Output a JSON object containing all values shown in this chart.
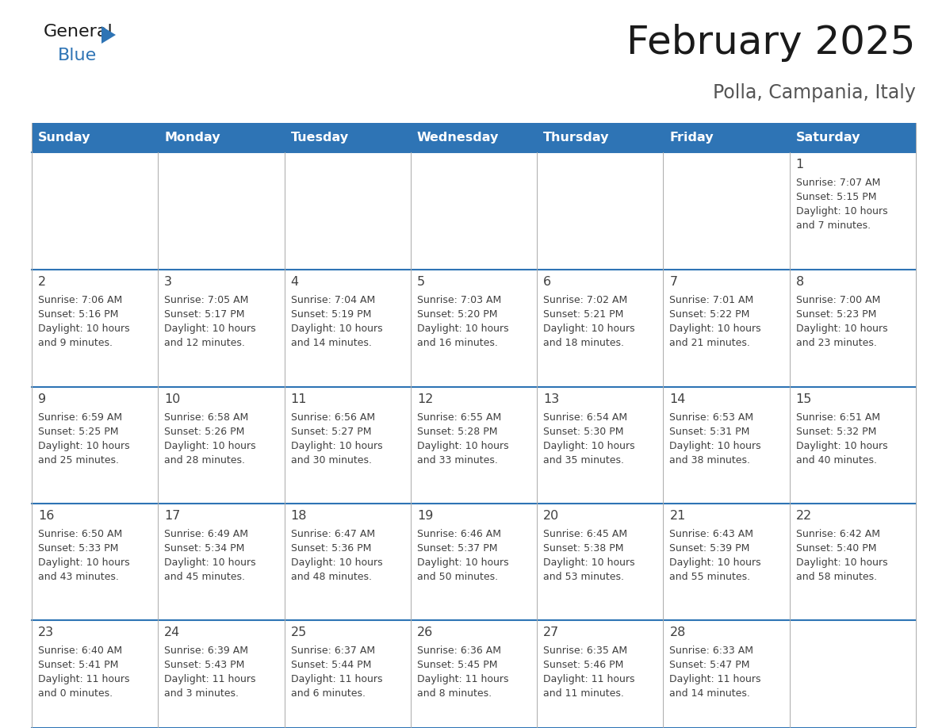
{
  "title": "February 2025",
  "subtitle": "Polla, Campania, Italy",
  "days_of_week": [
    "Sunday",
    "Monday",
    "Tuesday",
    "Wednesday",
    "Thursday",
    "Friday",
    "Saturday"
  ],
  "header_bg": "#2E74B5",
  "header_text_color": "#FFFFFF",
  "cell_bg": "#FFFFFF",
  "cell_bg_alt": "#F2F2F2",
  "divider_color": "#2E74B5",
  "divider_light": "#AAAAAA",
  "text_color": "#404040",
  "day_num_color": "#404040",
  "title_color": "#1a1a1a",
  "subtitle_color": "#555555",
  "logo_general_color": "#1a1a1a",
  "logo_blue_color": "#2E74B5",
  "logo_triangle_color": "#2E74B5",
  "calendar_data": [
    [
      null,
      null,
      null,
      null,
      null,
      null,
      {
        "day": "1",
        "sunrise": "7:07 AM",
        "sunset": "5:15 PM",
        "daylight": "10 hours\nand 7 minutes."
      }
    ],
    [
      {
        "day": "2",
        "sunrise": "7:06 AM",
        "sunset": "5:16 PM",
        "daylight": "10 hours\nand 9 minutes."
      },
      {
        "day": "3",
        "sunrise": "7:05 AM",
        "sunset": "5:17 PM",
        "daylight": "10 hours\nand 12 minutes."
      },
      {
        "day": "4",
        "sunrise": "7:04 AM",
        "sunset": "5:19 PM",
        "daylight": "10 hours\nand 14 minutes."
      },
      {
        "day": "5",
        "sunrise": "7:03 AM",
        "sunset": "5:20 PM",
        "daylight": "10 hours\nand 16 minutes."
      },
      {
        "day": "6",
        "sunrise": "7:02 AM",
        "sunset": "5:21 PM",
        "daylight": "10 hours\nand 18 minutes."
      },
      {
        "day": "7",
        "sunrise": "7:01 AM",
        "sunset": "5:22 PM",
        "daylight": "10 hours\nand 21 minutes."
      },
      {
        "day": "8",
        "sunrise": "7:00 AM",
        "sunset": "5:23 PM",
        "daylight": "10 hours\nand 23 minutes."
      }
    ],
    [
      {
        "day": "9",
        "sunrise": "6:59 AM",
        "sunset": "5:25 PM",
        "daylight": "10 hours\nand 25 minutes."
      },
      {
        "day": "10",
        "sunrise": "6:58 AM",
        "sunset": "5:26 PM",
        "daylight": "10 hours\nand 28 minutes."
      },
      {
        "day": "11",
        "sunrise": "6:56 AM",
        "sunset": "5:27 PM",
        "daylight": "10 hours\nand 30 minutes."
      },
      {
        "day": "12",
        "sunrise": "6:55 AM",
        "sunset": "5:28 PM",
        "daylight": "10 hours\nand 33 minutes."
      },
      {
        "day": "13",
        "sunrise": "6:54 AM",
        "sunset": "5:30 PM",
        "daylight": "10 hours\nand 35 minutes."
      },
      {
        "day": "14",
        "sunrise": "6:53 AM",
        "sunset": "5:31 PM",
        "daylight": "10 hours\nand 38 minutes."
      },
      {
        "day": "15",
        "sunrise": "6:51 AM",
        "sunset": "5:32 PM",
        "daylight": "10 hours\nand 40 minutes."
      }
    ],
    [
      {
        "day": "16",
        "sunrise": "6:50 AM",
        "sunset": "5:33 PM",
        "daylight": "10 hours\nand 43 minutes."
      },
      {
        "day": "17",
        "sunrise": "6:49 AM",
        "sunset": "5:34 PM",
        "daylight": "10 hours\nand 45 minutes."
      },
      {
        "day": "18",
        "sunrise": "6:47 AM",
        "sunset": "5:36 PM",
        "daylight": "10 hours\nand 48 minutes."
      },
      {
        "day": "19",
        "sunrise": "6:46 AM",
        "sunset": "5:37 PM",
        "daylight": "10 hours\nand 50 minutes."
      },
      {
        "day": "20",
        "sunrise": "6:45 AM",
        "sunset": "5:38 PM",
        "daylight": "10 hours\nand 53 minutes."
      },
      {
        "day": "21",
        "sunrise": "6:43 AM",
        "sunset": "5:39 PM",
        "daylight": "10 hours\nand 55 minutes."
      },
      {
        "day": "22",
        "sunrise": "6:42 AM",
        "sunset": "5:40 PM",
        "daylight": "10 hours\nand 58 minutes."
      }
    ],
    [
      {
        "day": "23",
        "sunrise": "6:40 AM",
        "sunset": "5:41 PM",
        "daylight": "11 hours\nand 0 minutes."
      },
      {
        "day": "24",
        "sunrise": "6:39 AM",
        "sunset": "5:43 PM",
        "daylight": "11 hours\nand 3 minutes."
      },
      {
        "day": "25",
        "sunrise": "6:37 AM",
        "sunset": "5:44 PM",
        "daylight": "11 hours\nand 6 minutes."
      },
      {
        "day": "26",
        "sunrise": "6:36 AM",
        "sunset": "5:45 PM",
        "daylight": "11 hours\nand 8 minutes."
      },
      {
        "day": "27",
        "sunrise": "6:35 AM",
        "sunset": "5:46 PM",
        "daylight": "11 hours\nand 11 minutes."
      },
      {
        "day": "28",
        "sunrise": "6:33 AM",
        "sunset": "5:47 PM",
        "daylight": "11 hours\nand 14 minutes."
      },
      null
    ]
  ]
}
